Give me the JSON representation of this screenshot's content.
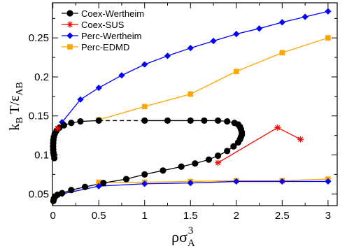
{
  "chart_data": {
    "type": "line",
    "xlabel": {
      "main": "ρσ",
      "sub": "A",
      "sup": "3"
    },
    "ylabel": {
      "main": "k",
      "sub1": "B",
      "mid": " T/ε",
      "sub2": "AB"
    },
    "xlim": [
      0,
      3.1
    ],
    "ylim": [
      0.035,
      0.295
    ],
    "x_ticks": [
      0,
      0.5,
      1,
      1.5,
      2,
      2.5,
      3
    ],
    "x_tick_labels": [
      "0",
      "0.5",
      "1",
      "1.5",
      "2",
      "2.5",
      "3"
    ],
    "y_ticks": [
      0.05,
      0.1,
      0.15,
      0.2,
      0.25
    ],
    "y_tick_labels": [
      "0.05",
      "0.1",
      "0.15",
      "0.2",
      "0.25"
    ],
    "legend_position": "top-left",
    "series": [
      {
        "name": "Coex-Wertheim",
        "color": "#000000",
        "marker": "circle",
        "x": [
          0.005,
          0.01,
          0.02,
          0.05,
          0.1,
          0.2,
          0.35,
          0.55,
          0.8,
          1.0,
          1.2,
          1.4,
          1.55,
          1.7,
          1.8,
          1.9,
          1.97,
          2.02,
          2.04,
          2.05,
          2.06,
          2.06,
          2.05,
          2.04,
          2.02,
          1.98,
          1.9,
          1.8,
          1.65,
          1.5,
          1.25,
          1.0,
          0.75,
          0.5,
          0.3,
          0.2,
          0.12,
          0.07,
          0.04,
          0.02,
          0.01,
          0.005,
          0.003,
          0.002,
          0.003,
          0.005,
          0.01,
          0.015,
          0.02,
          0.03,
          0.04,
          0.06,
          0.08,
          0.1,
          0.15,
          0.22,
          0.3,
          0.4,
          0.5
        ],
        "y": [
          0.041,
          0.044,
          0.046,
          0.049,
          0.051,
          0.055,
          0.059,
          0.064,
          0.069,
          0.075,
          0.08,
          0.085,
          0.089,
          0.094,
          0.099,
          0.105,
          0.111,
          0.116,
          0.12,
          0.123,
          0.126,
          0.129,
          0.133,
          0.136,
          0.139,
          0.141,
          0.143,
          0.144,
          0.144,
          0.144,
          0.144,
          0.144,
          null,
          null,
          null,
          null,
          null,
          null,
          null,
          null,
          null,
          null,
          null,
          null,
          null,
          null,
          null,
          null,
          null,
          null,
          null,
          null,
          null,
          null,
          null,
          null,
          null,
          null,
          null
        ]
      },
      {
        "name": "Coex-SUS",
        "color": "#ff0000",
        "marker": "asterisk",
        "x": [
          0.05,
          1.8,
          2.45,
          2.7
        ],
        "y": [
          0.134,
          0.09,
          0.135,
          0.12
        ]
      },
      {
        "name": "Perc-Wertheim",
        "color": "#0000ff",
        "marker": "diamond",
        "x": [
          0.1,
          0.3,
          0.5,
          0.75,
          1.0,
          1.25,
          1.5,
          1.75,
          2.0,
          2.25,
          2.5,
          2.75,
          3.0
        ],
        "y": [
          0.142,
          0.171,
          0.186,
          0.202,
          0.216,
          0.227,
          0.237,
          0.246,
          0.255,
          0.262,
          0.27,
          0.277,
          0.284
        ]
      },
      {
        "name": "Perc-EDMD",
        "color": "#ffa500",
        "marker": "square",
        "x": [
          0.5,
          1.0,
          1.5,
          2.0,
          2.5,
          3.0
        ],
        "y": [
          0.145,
          0.162,
          0.178,
          0.207,
          0.231,
          0.25
        ]
      }
    ],
    "lower_branch": {
      "coex_wertheim_low": {
        "x": [
          0.005,
          0.01,
          0.02,
          0.05,
          0.1,
          0.2,
          0.35,
          0.55,
          0.8,
          1.0,
          1.2,
          1.4,
          1.55,
          1.7,
          1.8,
          1.9,
          1.97,
          2.02,
          2.04,
          2.05,
          2.06
        ],
        "y": [
          0.041,
          0.044,
          0.046,
          0.049,
          0.051,
          0.055,
          0.059,
          0.064,
          0.069,
          0.075,
          0.08,
          0.085,
          0.089,
          0.094,
          0.099,
          0.105,
          0.111,
          0.116,
          0.12,
          0.123,
          0.126
        ]
      },
      "coex_wertheim_high": {
        "x": [
          2.06,
          2.05,
          2.04,
          2.02,
          1.98,
          1.9,
          1.8,
          1.65,
          1.5,
          1.25,
          1.0
        ],
        "y": [
          0.129,
          0.133,
          0.136,
          0.139,
          0.141,
          0.143,
          0.144,
          0.144,
          0.144,
          0.144,
          0.144
        ]
      },
      "coex_wertheim_left": {
        "x": [
          0.5,
          0.3,
          0.2,
          0.12,
          0.07,
          0.04,
          0.02,
          0.01,
          0.005,
          0.003,
          0.002,
          0.003,
          0.005,
          0.01,
          0.015
        ],
        "y": [
          0.144,
          0.143,
          0.141,
          0.138,
          0.135,
          0.131,
          0.127,
          0.123,
          0.119,
          0.115,
          0.111,
          0.107,
          0.103,
          0.1,
          0.096
        ]
      },
      "perc_wertheim_low": {
        "x": [
          0.1,
          0.5,
          1.0,
          1.5,
          2.0,
          2.5,
          3.0
        ],
        "y": [
          0.05,
          0.06,
          0.063,
          0.064,
          0.066,
          0.066,
          0.066
        ]
      },
      "perc_edmd_low": {
        "x": [
          0.5,
          1.0,
          1.5,
          2.0,
          2.5,
          3.0
        ],
        "y": [
          0.065,
          0.065,
          0.066,
          0.067,
          0.067,
          0.069
        ]
      },
      "dashed_segment": {
        "x": [
          0.5,
          1.0
        ],
        "y": [
          0.144,
          0.144
        ]
      }
    }
  }
}
